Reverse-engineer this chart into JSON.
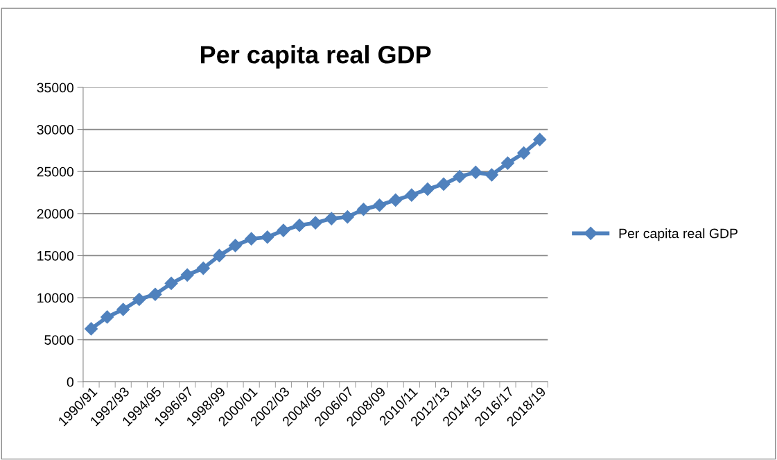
{
  "chart_data": {
    "type": "line",
    "title": "Per capita real GDP",
    "categories": [
      "1990/91",
      null,
      "1992/93",
      null,
      "1994/95",
      null,
      "1996/97",
      null,
      "1998/99",
      null,
      "2000/01",
      null,
      "2002/03",
      null,
      "2004/05",
      null,
      "2006/07",
      null,
      "2008/09",
      null,
      "2010/11",
      null,
      "2012/13",
      null,
      "2014/15",
      null,
      "2016/17",
      null,
      "2018/19"
    ],
    "series": [
      {
        "name": "Per capita real GDP",
        "color": "#4f81bd",
        "values": [
          6300,
          7700,
          8600,
          9800,
          10400,
          11700,
          12700,
          13500,
          15000,
          16200,
          17000,
          17200,
          18000,
          18600,
          18900,
          19400,
          19600,
          20500,
          21000,
          21600,
          22200,
          22900,
          23500,
          24400,
          24900,
          24600,
          26000,
          27200,
          28800
        ]
      }
    ],
    "ylim": [
      0,
      35000
    ],
    "yticks": [
      0,
      5000,
      10000,
      15000,
      20000,
      25000,
      30000,
      35000
    ],
    "grid": "y",
    "legend": "right",
    "marker": "diamond",
    "line_style": "solid"
  }
}
